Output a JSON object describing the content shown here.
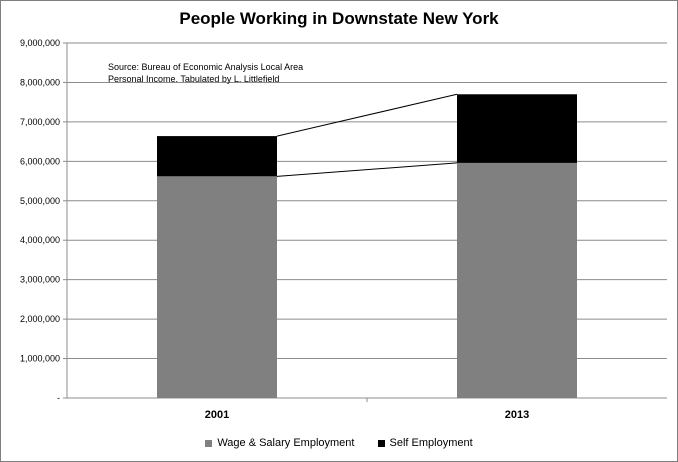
{
  "chart_data": {
    "type": "bar",
    "stacked": true,
    "title": "People Working in Downstate New York",
    "categories": [
      "2001",
      "2013"
    ],
    "series": [
      {
        "name": "Wage & Salary Employment",
        "color": "#808080",
        "values": [
          5620000,
          5960000
        ]
      },
      {
        "name": "Self Employment",
        "color": "#000000",
        "values": [
          1020000,
          1740000
        ]
      }
    ],
    "ylim": [
      0,
      9000000
    ],
    "y_ticks": [
      {
        "value": 0,
        "label": "-"
      },
      {
        "value": 1000000,
        "label": "1,000,000"
      },
      {
        "value": 2000000,
        "label": "2,000,000"
      },
      {
        "value": 3000000,
        "label": "3,000,000"
      },
      {
        "value": 4000000,
        "label": "4,000,000"
      },
      {
        "value": 5000000,
        "label": "5,000,000"
      },
      {
        "value": 6000000,
        "label": "6,000,000"
      },
      {
        "value": 7000000,
        "label": "7,000,000"
      },
      {
        "value": 8000000,
        "label": "8,000,000"
      },
      {
        "value": 9000000,
        "label": "9,000,000"
      }
    ],
    "grid": true,
    "series_lines": true,
    "legend_position": "bottom",
    "annotation": {
      "line1": "Source:  Bureau of Economic Analysis Local Area",
      "line2": "Personal Income.  Tabulated by L. Littlefield"
    }
  }
}
